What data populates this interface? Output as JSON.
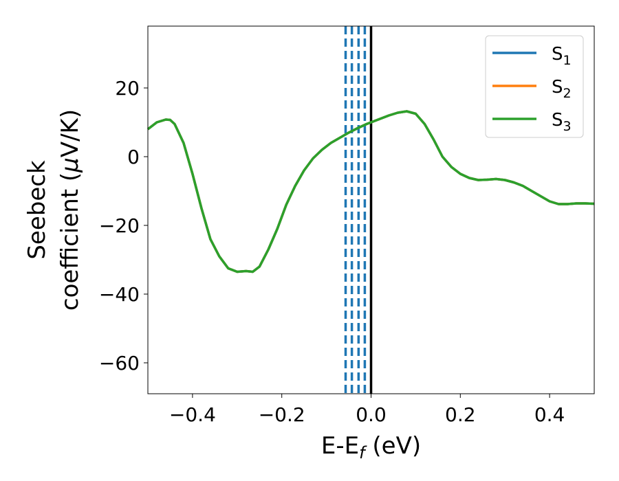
{
  "chart_data": {
    "type": "line",
    "title": "",
    "xlabel": "E-E",
    "xlabel_sub": "f",
    "xlabel_unit": " (eV)",
    "ylabel_line1": "Seebeck",
    "ylabel_line2": "coefficient  (",
    "ylabel_mu": "μ",
    "ylabel_unit": "V/K)",
    "xlim": [
      -0.5,
      0.5
    ],
    "ylim": [
      -69,
      38
    ],
    "xticks": [
      -0.4,
      -0.2,
      0.0,
      0.2,
      0.4
    ],
    "xtick_labels": [
      "−0.4",
      "−0.2",
      "0.0",
      "0.2",
      "0.4"
    ],
    "yticks": [
      20,
      0,
      -20,
      -40,
      -60
    ],
    "ytick_labels": [
      "20",
      "0",
      "−20",
      "−40",
      "−60"
    ],
    "grid": false,
    "legend_position": "top-right",
    "series": [
      {
        "name": "S",
        "sub": "1",
        "color": "#1f77b4"
      },
      {
        "name": "S",
        "sub": "2",
        "color": "#ff7f0e"
      },
      {
        "name": "S",
        "sub": "3",
        "color": "#2ca02c"
      }
    ],
    "curve": {
      "x": [
        -0.5,
        -0.48,
        -0.46,
        -0.45,
        -0.44,
        -0.42,
        -0.4,
        -0.38,
        -0.36,
        -0.34,
        -0.32,
        -0.3,
        -0.28,
        -0.265,
        -0.25,
        -0.23,
        -0.21,
        -0.19,
        -0.17,
        -0.15,
        -0.13,
        -0.11,
        -0.09,
        -0.07,
        -0.05,
        -0.03,
        -0.01,
        0.0,
        0.02,
        0.04,
        0.06,
        0.08,
        0.1,
        0.12,
        0.14,
        0.16,
        0.18,
        0.2,
        0.22,
        0.24,
        0.26,
        0.28,
        0.3,
        0.32,
        0.34,
        0.36,
        0.38,
        0.4,
        0.42,
        0.44,
        0.46,
        0.48,
        0.5
      ],
      "y": [
        8,
        10,
        10.8,
        10.7,
        9.5,
        4,
        -5,
        -15,
        -24,
        -29,
        -32.5,
        -33.5,
        -33.3,
        -33.5,
        -32,
        -27,
        -21,
        -14,
        -8.5,
        -4,
        -0.5,
        2,
        4,
        5.5,
        7,
        8.3,
        9.5,
        10,
        11,
        12,
        12.8,
        13.2,
        12.5,
        9.5,
        5,
        0,
        -3,
        -5,
        -6.2,
        -6.8,
        -6.7,
        -6.5,
        -6.8,
        -7.5,
        -8.5,
        -10,
        -11.5,
        -13,
        -13.8,
        -13.8,
        -13.6,
        -13.6,
        -13.7
      ]
    },
    "vlines": [
      {
        "x": -0.057,
        "color": "#1f77b4",
        "style": "dashed"
      },
      {
        "x": -0.043,
        "color": "#1f77b4",
        "style": "dashed"
      },
      {
        "x": -0.028,
        "color": "#1f77b4",
        "style": "dashed"
      },
      {
        "x": -0.014,
        "color": "#1f77b4",
        "style": "dashed"
      },
      {
        "x": 0.0,
        "color": "#000000",
        "style": "solid"
      }
    ]
  }
}
